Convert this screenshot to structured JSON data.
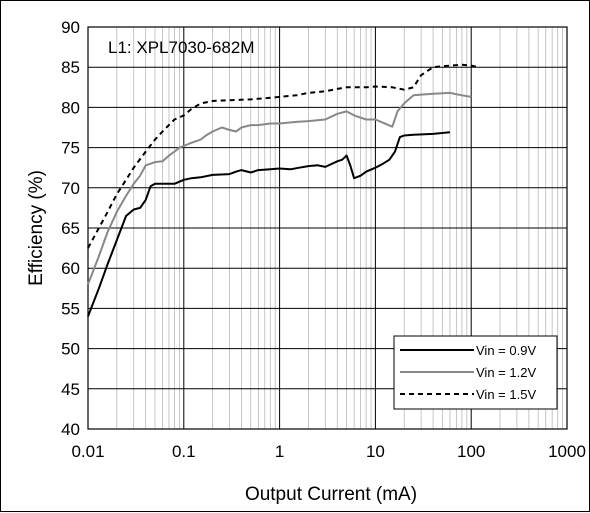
{
  "chart_data": {
    "type": "line",
    "xscale": "log",
    "xlabel": "Output Current (mA)",
    "ylabel": "Efficiency (%)",
    "xlim": [
      0.01,
      1000
    ],
    "ylim": [
      40,
      90
    ],
    "xticks": [
      0.01,
      0.1,
      1,
      10,
      100,
      1000
    ],
    "xtick_labels": [
      "0.01",
      "0.1",
      "1",
      "10",
      "100",
      "1000"
    ],
    "yticks": [
      40,
      45,
      50,
      55,
      60,
      65,
      70,
      75,
      80,
      85,
      90
    ],
    "ytick_labels": [
      "40",
      "45",
      "50",
      "55",
      "60",
      "65",
      "70",
      "75",
      "80",
      "85",
      "90"
    ],
    "grid": true,
    "annotation": "L1: XPL7030-682M",
    "legend_position": "bottom-right",
    "series": [
      {
        "name": "Vin = 0.9V",
        "color": "#000000",
        "dash": "solid",
        "x": [
          0.01,
          0.013,
          0.016,
          0.02,
          0.025,
          0.03,
          0.035,
          0.04,
          0.045,
          0.05,
          0.055,
          0.06,
          0.08,
          0.1,
          0.12,
          0.15,
          0.2,
          0.3,
          0.35,
          0.4,
          0.5,
          0.6,
          0.8,
          1,
          1.3,
          1.6,
          2,
          2.5,
          3,
          4,
          4.5,
          5,
          5.5,
          6,
          7,
          8,
          10,
          12,
          14,
          16,
          18,
          20,
          25,
          40,
          60
        ],
        "y": [
          54,
          57.5,
          60.5,
          63.5,
          66.5,
          67.3,
          67.5,
          68.5,
          70.2,
          70.5,
          70.5,
          70.5,
          70.5,
          71,
          71.2,
          71.3,
          71.6,
          71.7,
          72,
          72.2,
          71.9,
          72.2,
          72.3,
          72.4,
          72.3,
          72.5,
          72.7,
          72.8,
          72.6,
          73.3,
          73.5,
          74,
          72.7,
          71.2,
          71.5,
          72,
          72.5,
          73,
          73.5,
          74.5,
          76.3,
          76.5,
          76.6,
          76.7,
          76.9
        ]
      },
      {
        "name": "Vin = 1.2V",
        "color": "#888888",
        "dash": "solid",
        "x": [
          0.01,
          0.013,
          0.016,
          0.02,
          0.025,
          0.03,
          0.035,
          0.04,
          0.045,
          0.05,
          0.06,
          0.07,
          0.08,
          0.09,
          0.1,
          0.12,
          0.15,
          0.17,
          0.2,
          0.25,
          0.3,
          0.35,
          0.4,
          0.5,
          0.6,
          0.8,
          1,
          1.5,
          2,
          3,
          4,
          5,
          6,
          8,
          10,
          15,
          17,
          20,
          25,
          40,
          60,
          80,
          100
        ],
        "y": [
          58,
          61.5,
          64.5,
          67,
          69,
          70.5,
          71.5,
          72.8,
          73,
          73.2,
          73.3,
          74,
          74.5,
          75,
          75.2,
          75.6,
          76,
          76.5,
          77,
          77.5,
          77.2,
          77,
          77.5,
          77.8,
          77.8,
          78,
          78,
          78.2,
          78.3,
          78.5,
          79.2,
          79.5,
          79,
          78.5,
          78.5,
          77.6,
          79.5,
          80.5,
          81.5,
          81.7,
          81.8,
          81.5,
          81.3
        ]
      },
      {
        "name": "Vin = 1.5V",
        "color": "#000000",
        "dash": "dashed",
        "x": [
          0.01,
          0.013,
          0.016,
          0.02,
          0.025,
          0.03,
          0.04,
          0.05,
          0.06,
          0.08,
          0.1,
          0.12,
          0.15,
          0.2,
          0.3,
          0.5,
          0.8,
          1,
          1.5,
          2,
          3,
          4,
          5,
          6,
          8,
          10,
          15,
          20,
          25,
          30,
          40,
          60,
          80,
          100,
          120
        ],
        "y": [
          62.5,
          65,
          67,
          69.2,
          71,
          72.5,
          74.5,
          76,
          77,
          78.5,
          79,
          79.8,
          80.5,
          80.8,
          80.9,
          81,
          81.2,
          81.3,
          81.5,
          81.8,
          82,
          82.3,
          82.5,
          82.5,
          82.5,
          82.6,
          82.5,
          82.2,
          82.5,
          84,
          85,
          85.2,
          85.3,
          85.2,
          85
        ]
      }
    ]
  }
}
